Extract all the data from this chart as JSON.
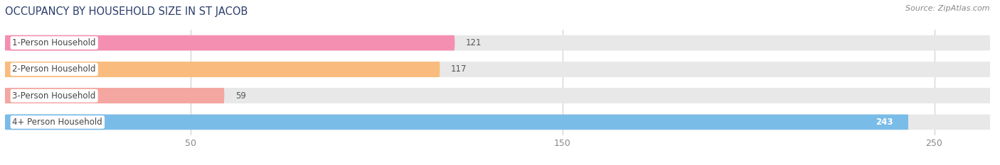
{
  "title": "OCCUPANCY BY HOUSEHOLD SIZE IN ST JACOB",
  "source": "Source: ZipAtlas.com",
  "categories": [
    "1-Person Household",
    "2-Person Household",
    "3-Person Household",
    "4+ Person Household"
  ],
  "values": [
    121,
    117,
    59,
    243
  ],
  "bar_colors": [
    "#f48fb1",
    "#f9bc7e",
    "#f4a6a0",
    "#7abce8"
  ],
  "bar_bg_color": "#e8e8e8",
  "label_box_color": "#ffffff",
  "label_box_edge_colors": [
    "#f48fb1",
    "#f9bc7e",
    "#f4a6a0",
    "#7abce8"
  ],
  "xlim": [
    0,
    265
  ],
  "xticks": [
    50,
    150,
    250
  ],
  "value_label_colors": [
    "#555555",
    "#555555",
    "#555555",
    "#ffffff"
  ],
  "figsize": [
    14.06,
    2.33
  ],
  "background_color": "#ffffff",
  "bar_height": 0.58,
  "label_fontsize": 8.5,
  "title_fontsize": 10.5,
  "source_fontsize": 8,
  "tick_fontsize": 9,
  "category_fontsize": 8.5,
  "value_fontsize": 8.5
}
